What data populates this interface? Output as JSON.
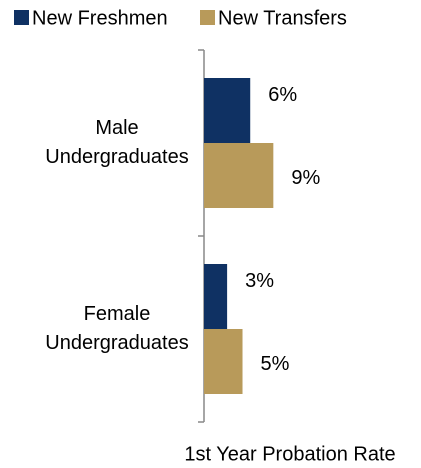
{
  "chart_data": {
    "type": "barh",
    "categories": [
      "Male Undergraduates",
      "Female Undergraduates"
    ],
    "series": [
      {
        "name": "New Freshmen",
        "color": "#0f3163",
        "values": [
          6,
          3
        ],
        "value_labels": [
          "6%",
          "3%"
        ]
      },
      {
        "name": "New Transfers",
        "color": "#b89a5a",
        "values": [
          9,
          5
        ],
        "value_labels": [
          "9%",
          "5%"
        ]
      }
    ],
    "xlabel": "1st Year Probation Rate",
    "xlim": [
      0,
      27
    ]
  }
}
